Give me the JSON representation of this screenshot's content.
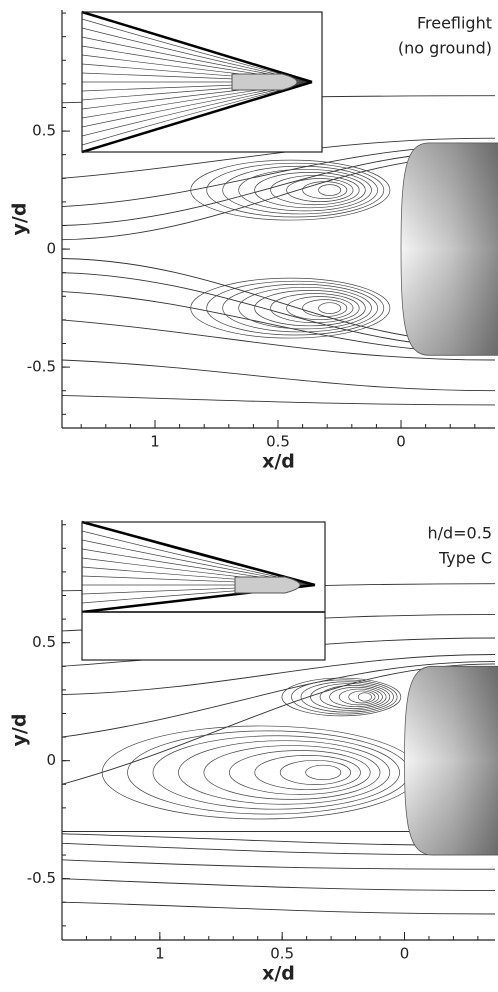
{
  "panels": [
    {
      "annotation": [
        "Freeflight",
        "(no ground)"
      ],
      "xlabel": "x/d",
      "ylabel": "y/d",
      "xlim": [
        1.378,
        -0.382
      ],
      "ylim": [
        -0.758,
        1.013
      ],
      "xticks": [
        1,
        0.5,
        0
      ],
      "yticks": [
        0.5,
        0,
        -0.5
      ]
    },
    {
      "annotation": [
        "h/d=0.5",
        "Type C"
      ],
      "xlabel": "x/d",
      "ylabel": "y/d",
      "xlim": [
        1.4,
        -0.37
      ],
      "ylim": [
        -0.76,
        1.02
      ],
      "xticks": [
        1,
        0.5,
        0
      ],
      "yticks": [
        0.5,
        0,
        -0.5
      ]
    }
  ]
}
